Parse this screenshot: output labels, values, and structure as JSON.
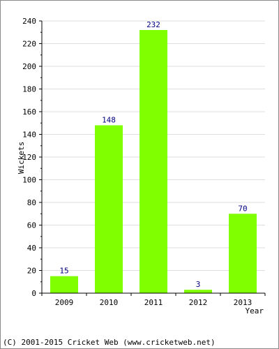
{
  "chart_data": {
    "type": "bar",
    "categories": [
      "2009",
      "2010",
      "2011",
      "2012",
      "2013"
    ],
    "values": [
      15,
      148,
      232,
      3,
      70
    ],
    "data_labels": [
      "15",
      "148",
      "232",
      "3",
      "70"
    ],
    "title": "",
    "xlabel": "Year",
    "ylabel": "Wickets",
    "ylim": [
      0,
      240
    ],
    "y_ticks": [
      0,
      20,
      40,
      60,
      80,
      100,
      120,
      140,
      160,
      180,
      200,
      220,
      240
    ],
    "grid": true,
    "legend": "none"
  },
  "colors": {
    "bar": "#80ff00",
    "data_label": "#000080",
    "grid": "#dddddd",
    "axis": "#000000",
    "frame": "#8a8a8a"
  },
  "footer": {
    "copyright": "(C) 2001-2015 Cricket Web (www.cricketweb.net)"
  }
}
